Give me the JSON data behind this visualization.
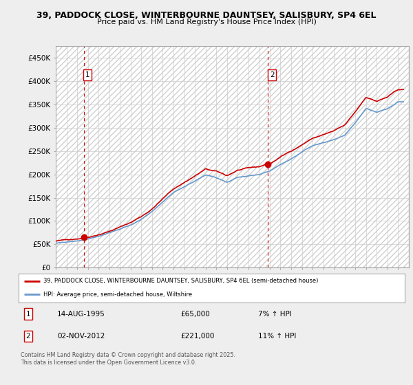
{
  "title_line1": "39, PADDOCK CLOSE, WINTERBOURNE DAUNTSEY, SALISBURY, SP4 6EL",
  "title_line2": "Price paid vs. HM Land Registry's House Price Index (HPI)",
  "ylim": [
    0,
    475000
  ],
  "yticks": [
    0,
    50000,
    100000,
    150000,
    200000,
    250000,
    300000,
    350000,
    400000,
    450000
  ],
  "ytick_labels": [
    "£0",
    "£50K",
    "£100K",
    "£150K",
    "£200K",
    "£250K",
    "£300K",
    "£350K",
    "£400K",
    "£450K"
  ],
  "background_color": "#eeeeee",
  "plot_bg_color": "#ffffff",
  "grid_color": "#cccccc",
  "sale1_date_x": 1995.62,
  "sale1_price": 65000,
  "sale2_date_x": 2012.84,
  "sale2_price": 221000,
  "legend_line1": "39, PADDOCK CLOSE, WINTERBOURNE DAUNTSEY, SALISBURY, SP4 6EL (semi-detached house)",
  "legend_line2": "HPI: Average price, semi-detached house, Wiltshire",
  "annotation1_label": "1",
  "annotation1_date": "14-AUG-1995",
  "annotation1_price": "£65,000",
  "annotation1_hpi": "7% ↑ HPI",
  "annotation2_label": "2",
  "annotation2_date": "02-NOV-2012",
  "annotation2_price": "£221,000",
  "annotation2_hpi": "11% ↑ HPI",
  "footer": "Contains HM Land Registry data © Crown copyright and database right 2025.\nThis data is licensed under the Open Government Licence v3.0.",
  "line_color_red": "#cc0000",
  "line_color_blue": "#6699cc",
  "xmin": 1993,
  "xmax": 2026,
  "years_hpi": [
    1993,
    1994,
    1995,
    1996,
    1997,
    1998,
    1999,
    2000,
    2001,
    2002,
    2003,
    2004,
    2005,
    2006,
    2007,
    2008,
    2009,
    2010,
    2011,
    2012,
    2013,
    2014,
    2015,
    2016,
    2017,
    2018,
    2019,
    2020,
    2021,
    2022,
    2023,
    2024,
    2025
  ],
  "hpi_values": [
    52000,
    54000,
    57000,
    61000,
    67000,
    74000,
    82000,
    91000,
    103000,
    118000,
    138000,
    157000,
    170000,
    183000,
    196000,
    191000,
    182000,
    193000,
    196000,
    198000,
    206000,
    220000,
    232000,
    245000,
    258000,
    265000,
    272000,
    282000,
    308000,
    338000,
    330000,
    338000,
    352000
  ]
}
